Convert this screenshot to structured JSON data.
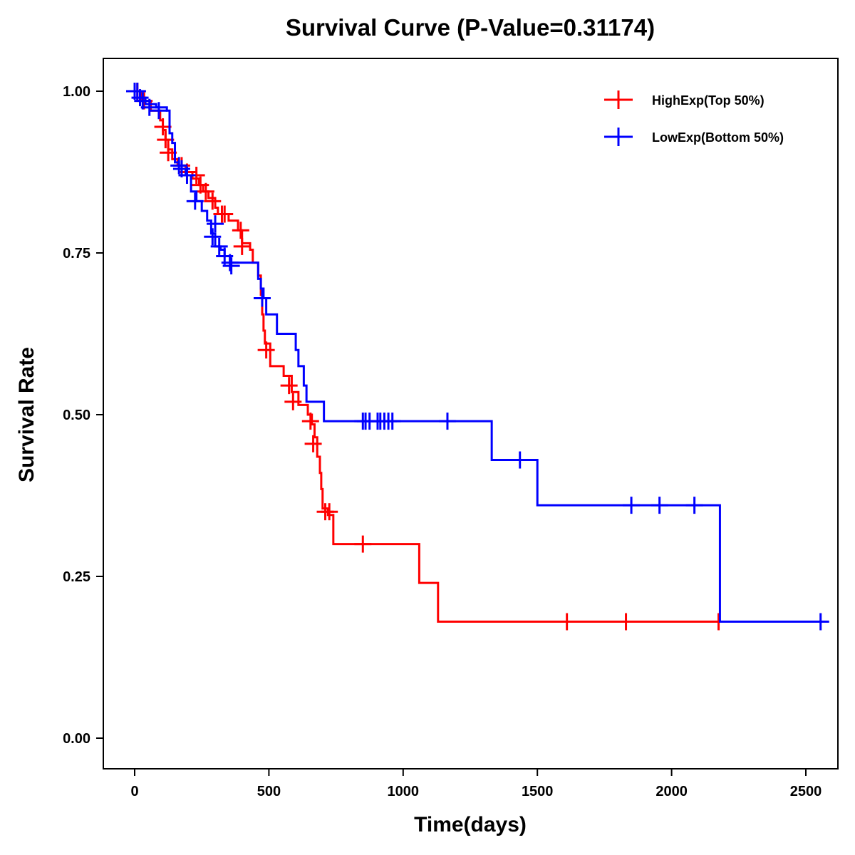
{
  "chart_data": {
    "type": "line",
    "subtype": "kaplan-meier step",
    "title": "Survival Curve (P-Value=0.31174)",
    "xlabel": "Time(days)",
    "ylabel": "Survival Rate",
    "xlim": [
      -110,
      2620
    ],
    "ylim": [
      -0.05,
      1.05
    ],
    "x_ticks": [
      0,
      500,
      1000,
      1500,
      2000,
      2500
    ],
    "x_tick_labels": [
      "0",
      "500",
      "1000",
      "1500",
      "2000",
      "2500"
    ],
    "y_ticks": [
      0,
      0.25,
      0.5,
      0.75,
      1.0
    ],
    "y_tick_labels": [
      "0.00",
      "0.25",
      "0.50",
      "0.75",
      "1.00"
    ],
    "grid": false,
    "legend_position": "top-right",
    "series": [
      {
        "name": "HighExp(Top 50%)",
        "color": "#ff0000",
        "steps": [
          [
            0,
            1.0
          ],
          [
            25,
            0.985
          ],
          [
            60,
            0.97
          ],
          [
            95,
            0.955
          ],
          [
            105,
            0.94
          ],
          [
            115,
            0.925
          ],
          [
            125,
            0.91
          ],
          [
            140,
            0.895
          ],
          [
            160,
            0.885
          ],
          [
            190,
            0.875
          ],
          [
            215,
            0.865
          ],
          [
            240,
            0.855
          ],
          [
            255,
            0.845
          ],
          [
            275,
            0.835
          ],
          [
            300,
            0.82
          ],
          [
            310,
            0.81
          ],
          [
            350,
            0.8
          ],
          [
            385,
            0.785
          ],
          [
            400,
            0.765
          ],
          [
            430,
            0.755
          ],
          [
            440,
            0.735
          ],
          [
            460,
            0.715
          ],
          [
            470,
            0.685
          ],
          [
            475,
            0.655
          ],
          [
            480,
            0.63
          ],
          [
            485,
            0.61
          ],
          [
            505,
            0.575
          ],
          [
            555,
            0.56
          ],
          [
            585,
            0.535
          ],
          [
            610,
            0.515
          ],
          [
            645,
            0.5
          ],
          [
            660,
            0.485
          ],
          [
            670,
            0.465
          ],
          [
            680,
            0.435
          ],
          [
            690,
            0.41
          ],
          [
            695,
            0.385
          ],
          [
            700,
            0.355
          ],
          [
            720,
            0.345
          ],
          [
            740,
            0.3
          ],
          [
            1060,
            0.24
          ],
          [
            1130,
            0.18
          ]
        ],
        "censored": [
          [
            10,
            1.0
          ],
          [
            35,
            0.985
          ],
          [
            105,
            0.945
          ],
          [
            115,
            0.925
          ],
          [
            125,
            0.905
          ],
          [
            175,
            0.885
          ],
          [
            195,
            0.875
          ],
          [
            230,
            0.87
          ],
          [
            245,
            0.855
          ],
          [
            265,
            0.845
          ],
          [
            290,
            0.83
          ],
          [
            325,
            0.81
          ],
          [
            335,
            0.81
          ],
          [
            395,
            0.785
          ],
          [
            400,
            0.76
          ],
          [
            490,
            0.6
          ],
          [
            575,
            0.545
          ],
          [
            590,
            0.52
          ],
          [
            655,
            0.49
          ],
          [
            665,
            0.455
          ],
          [
            710,
            0.35
          ],
          [
            725,
            0.35
          ],
          [
            850,
            0.3
          ],
          [
            1610,
            0.18
          ],
          [
            1830,
            0.18
          ],
          [
            2175,
            0.18
          ]
        ]
      },
      {
        "name": "LowExp(Bottom 50%)",
        "color": "#0000ff",
        "steps": [
          [
            0,
            1.0
          ],
          [
            20,
            0.99
          ],
          [
            40,
            0.98
          ],
          [
            80,
            0.975
          ],
          [
            120,
            0.97
          ],
          [
            130,
            0.935
          ],
          [
            140,
            0.92
          ],
          [
            150,
            0.89
          ],
          [
            165,
            0.88
          ],
          [
            190,
            0.87
          ],
          [
            210,
            0.845
          ],
          [
            230,
            0.83
          ],
          [
            250,
            0.815
          ],
          [
            270,
            0.8
          ],
          [
            285,
            0.78
          ],
          [
            300,
            0.76
          ],
          [
            320,
            0.755
          ],
          [
            335,
            0.745
          ],
          [
            355,
            0.735
          ],
          [
            460,
            0.71
          ],
          [
            470,
            0.695
          ],
          [
            480,
            0.68
          ],
          [
            490,
            0.655
          ],
          [
            530,
            0.625
          ],
          [
            600,
            0.6
          ],
          [
            610,
            0.575
          ],
          [
            630,
            0.545
          ],
          [
            640,
            0.52
          ],
          [
            705,
            0.49
          ],
          [
            1330,
            0.43
          ],
          [
            1500,
            0.36
          ],
          [
            2180,
            0.18
          ]
        ],
        "censored": [
          [
            0,
            1.0
          ],
          [
            10,
            1.0
          ],
          [
            20,
            0.99
          ],
          [
            30,
            0.985
          ],
          [
            55,
            0.975
          ],
          [
            90,
            0.97
          ],
          [
            165,
            0.885
          ],
          [
            175,
            0.88
          ],
          [
            195,
            0.87
          ],
          [
            225,
            0.83
          ],
          [
            290,
            0.775
          ],
          [
            300,
            0.795
          ],
          [
            315,
            0.76
          ],
          [
            335,
            0.745
          ],
          [
            355,
            0.735
          ],
          [
            360,
            0.73
          ],
          [
            475,
            0.68
          ],
          [
            850,
            0.49
          ],
          [
            860,
            0.49
          ],
          [
            875,
            0.49
          ],
          [
            905,
            0.49
          ],
          [
            915,
            0.49
          ],
          [
            930,
            0.49
          ],
          [
            945,
            0.49
          ],
          [
            960,
            0.49
          ],
          [
            1165,
            0.49
          ],
          [
            1435,
            0.43
          ],
          [
            1850,
            0.36
          ],
          [
            1955,
            0.36
          ],
          [
            2085,
            0.36
          ],
          [
            2555,
            0.18
          ]
        ]
      }
    ]
  }
}
